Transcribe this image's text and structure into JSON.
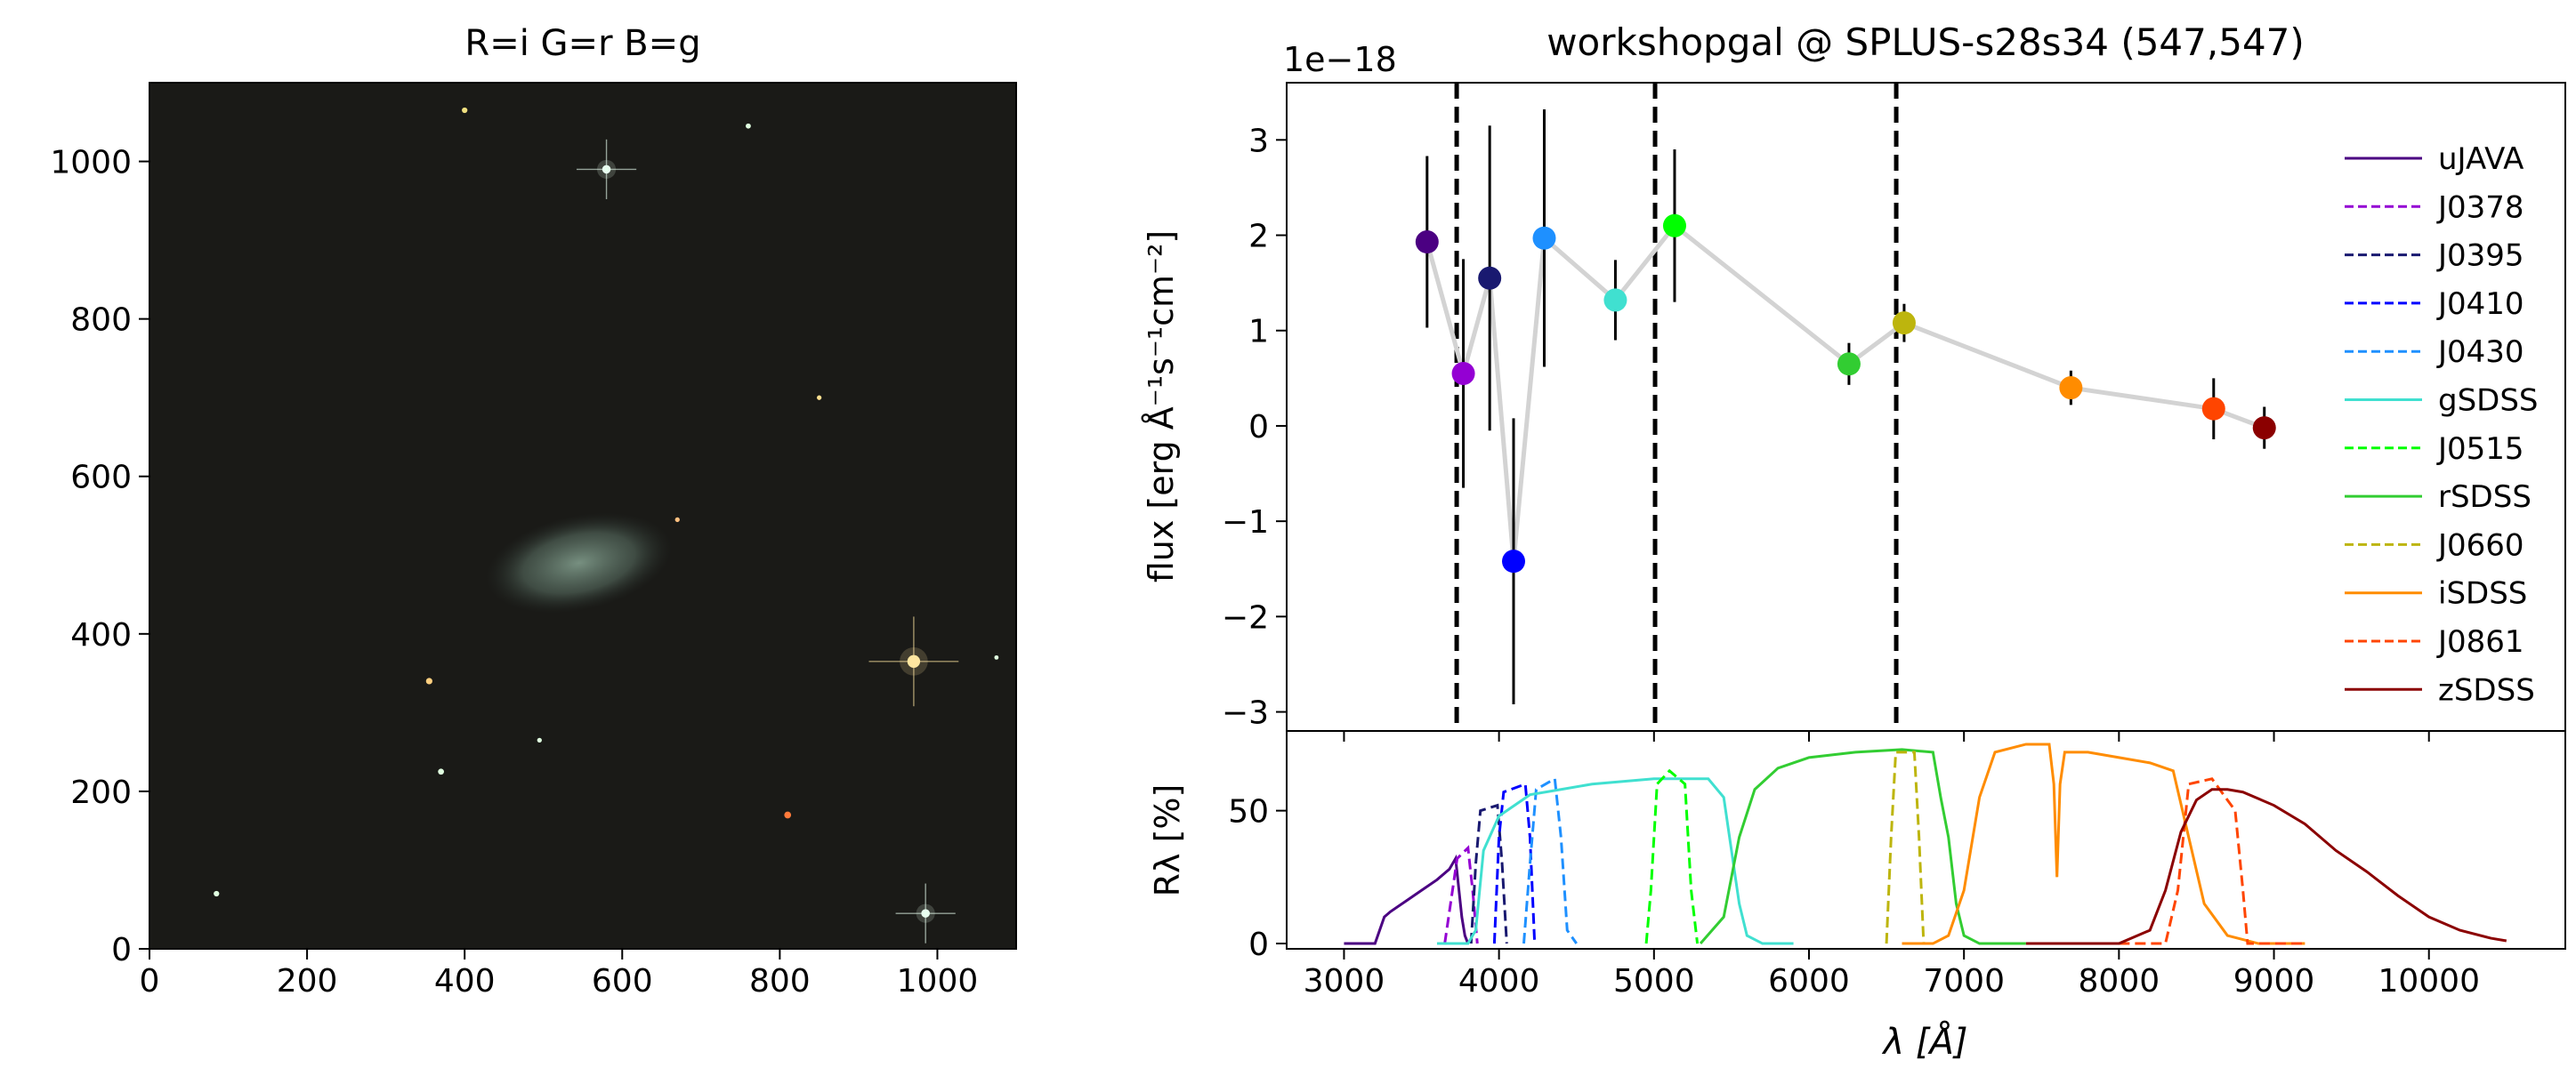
{
  "chart_data": [
    {
      "type": "image",
      "title": "R=i G=r B=g",
      "xlim": [
        0,
        1100
      ],
      "ylim": [
        0,
        1100
      ],
      "x_ticks": [
        0,
        200,
        400,
        600,
        800,
        1000
      ],
      "y_ticks": [
        0,
        200,
        400,
        600,
        800,
        1000
      ],
      "x_tick_labels": [
        "0",
        "200",
        "400",
        "600",
        "800",
        "1000"
      ],
      "y_tick_labels": [
        "0",
        "200",
        "400",
        "600",
        "800",
        "1000"
      ],
      "background_color": "#1a1a17",
      "galaxy": {
        "center": [
          545,
          490
        ],
        "semi_axes": [
          120,
          60
        ],
        "color": "#6f8a7a"
      },
      "bright_stars": [
        {
          "x": 970,
          "y": 365,
          "size": 3,
          "color": "#ffe6a0"
        },
        {
          "x": 580,
          "y": 990,
          "size": 2,
          "color": "#e8fff0"
        },
        {
          "x": 985,
          "y": 45,
          "size": 2,
          "color": "#e8fff0"
        },
        {
          "x": 810,
          "y": 170,
          "size": 1.6,
          "color": "#ff7a3a"
        },
        {
          "x": 355,
          "y": 340,
          "size": 1.5,
          "color": "#ffd080"
        },
        {
          "x": 370,
          "y": 225,
          "size": 1.4,
          "color": "#e0ffe0"
        },
        {
          "x": 85,
          "y": 70,
          "size": 1.3,
          "color": "#e0ffe0"
        },
        {
          "x": 400,
          "y": 1065,
          "size": 1.3,
          "color": "#f0e080"
        },
        {
          "x": 760,
          "y": 1045,
          "size": 1.2,
          "color": "#e0ffe0"
        },
        {
          "x": 850,
          "y": 700,
          "size": 1.1,
          "color": "#ffe090"
        },
        {
          "x": 670,
          "y": 545,
          "size": 1.1,
          "color": "#ffc080"
        },
        {
          "x": 495,
          "y": 265,
          "size": 1.1,
          "color": "#e0ffe0"
        },
        {
          "x": 1075,
          "y": 370,
          "size": 1.0,
          "color": "#e0ffe0"
        }
      ]
    },
    {
      "type": "scatter",
      "title": "workshopgal @ SPLUS-s28s34 (547,547)",
      "ylabel": "flux [erg Å⁻¹s⁻¹cm⁻²]",
      "offset_text": "1e−18",
      "y_scale_factor": 1e-18,
      "xlim": [
        2630,
        10880
      ],
      "ylim": [
        -3.2,
        3.6
      ],
      "y_ticks": [
        3,
        2,
        1,
        0,
        -1,
        -2,
        -3
      ],
      "y_tick_labels": [
        "3",
        "2",
        "1",
        "0",
        "−1",
        "−2",
        "−3"
      ],
      "vertical_lines": [
        3727,
        5007,
        6563
      ],
      "connecting_line_color": "#d3d3d3",
      "points": [
        {
          "filter": "uJAVA",
          "x": 3536,
          "y": 1.93,
          "err": 0.9,
          "color": "#4b0082"
        },
        {
          "filter": "J0378",
          "x": 3770,
          "y": 0.55,
          "err": 1.2,
          "color": "#9400d3"
        },
        {
          "filter": "J0395",
          "x": 3940,
          "y": 1.55,
          "err": 1.6,
          "color": "#191970"
        },
        {
          "filter": "J0410",
          "x": 4094,
          "y": -1.42,
          "err": 1.5,
          "color": "#0000ff"
        },
        {
          "filter": "J0430",
          "x": 4292,
          "y": 1.97,
          "err": 1.35,
          "color": "#1e90ff"
        },
        {
          "filter": "gSDSS",
          "x": 4751,
          "y": 1.32,
          "err": 0.42,
          "color": "#40e0d0"
        },
        {
          "filter": "J0515",
          "x": 5133,
          "y": 2.1,
          "err": 0.8,
          "color": "#00ff00"
        },
        {
          "filter": "rSDSS",
          "x": 6258,
          "y": 0.65,
          "err": 0.22,
          "color": "#32cd32"
        },
        {
          "filter": "J0660",
          "x": 6614,
          "y": 1.08,
          "err": 0.2,
          "color": "#bdb50d"
        },
        {
          "filter": "iSDSS",
          "x": 7690,
          "y": 0.4,
          "err": 0.18,
          "color": "#ff8c00"
        },
        {
          "filter": "J0861",
          "x": 8611,
          "y": 0.18,
          "err": 0.32,
          "color": "#ff4500"
        },
        {
          "filter": "zSDSS",
          "x": 8938,
          "y": -0.02,
          "err": 0.22,
          "color": "#8b0000"
        }
      ],
      "legend": [
        {
          "label": "uJAVA",
          "color": "#4b0082",
          "dashed": false
        },
        {
          "label": "J0378",
          "color": "#9400d3",
          "dashed": true
        },
        {
          "label": "J0395",
          "color": "#191970",
          "dashed": true
        },
        {
          "label": "J0410",
          "color": "#0000ff",
          "dashed": true
        },
        {
          "label": "J0430",
          "color": "#1e90ff",
          "dashed": true
        },
        {
          "label": "gSDSS",
          "color": "#40e0d0",
          "dashed": false
        },
        {
          "label": "J0515",
          "color": "#00ff00",
          "dashed": true
        },
        {
          "label": "rSDSS",
          "color": "#32cd32",
          "dashed": false
        },
        {
          "label": "J0660",
          "color": "#bdb50d",
          "dashed": true
        },
        {
          "label": "iSDSS",
          "color": "#ff8c00",
          "dashed": false
        },
        {
          "label": "J0861",
          "color": "#ff4500",
          "dashed": true
        },
        {
          "label": "zSDSS",
          "color": "#8b0000",
          "dashed": false
        }
      ],
      "legend_placement": "right"
    },
    {
      "type": "line",
      "xlabel": "λ [Å]",
      "ylabel": "Rλ [%]",
      "xlim": [
        2630,
        10880
      ],
      "ylim": [
        -2,
        80
      ],
      "x_ticks": [
        3000,
        4000,
        5000,
        6000,
        7000,
        8000,
        9000,
        10000
      ],
      "x_tick_labels": [
        "3000",
        "4000",
        "5000",
        "6000",
        "7000",
        "8000",
        "9000",
        "10000"
      ],
      "y_ticks": [
        0,
        50
      ],
      "y_tick_labels": [
        "0",
        "50"
      ],
      "series": [
        {
          "name": "uJAVA",
          "color": "#4b0082",
          "dashed": false,
          "x": [
            3000,
            3200,
            3260,
            3300,
            3400,
            3500,
            3600,
            3680,
            3720,
            3760,
            3780,
            3800
          ],
          "y": [
            0,
            0,
            10,
            12,
            16,
            20,
            24,
            28,
            32,
            10,
            3,
            0
          ]
        },
        {
          "name": "J0378",
          "color": "#9400d3",
          "dashed": true,
          "x": [
            3650,
            3700,
            3730,
            3800,
            3830,
            3860
          ],
          "y": [
            0,
            20,
            32,
            36,
            20,
            0
          ]
        },
        {
          "name": "J0395",
          "color": "#191970",
          "dashed": true,
          "x": [
            3820,
            3850,
            3880,
            3990,
            4020,
            4050
          ],
          "y": [
            0,
            30,
            50,
            52,
            30,
            0
          ]
        },
        {
          "name": "J0410",
          "color": "#0000ff",
          "dashed": true,
          "x": [
            3970,
            4000,
            4030,
            4170,
            4200,
            4230
          ],
          "y": [
            0,
            40,
            57,
            60,
            40,
            0
          ]
        },
        {
          "name": "J0430",
          "color": "#1e90ff",
          "dashed": true,
          "x": [
            4160,
            4200,
            4240,
            4360,
            4400,
            4440,
            4500
          ],
          "y": [
            0,
            30,
            58,
            62,
            40,
            5,
            0
          ]
        },
        {
          "name": "gSDSS",
          "color": "#40e0d0",
          "dashed": false,
          "x": [
            3600,
            3800,
            3850,
            3900,
            4000,
            4200,
            4400,
            4600,
            4800,
            5000,
            5200,
            5350,
            5450,
            5500,
            5550,
            5600,
            5700,
            5900
          ],
          "y": [
            0,
            0,
            5,
            35,
            48,
            56,
            58,
            60,
            61,
            62,
            62,
            62,
            55,
            35,
            15,
            3,
            0,
            0
          ]
        },
        {
          "name": "J0515",
          "color": "#00ff00",
          "dashed": true,
          "x": [
            4950,
            4980,
            5020,
            5100,
            5200,
            5240,
            5280
          ],
          "y": [
            0,
            20,
            60,
            65,
            60,
            20,
            0
          ]
        },
        {
          "name": "rSDSS",
          "color": "#32cd32",
          "dashed": false,
          "x": [
            5300,
            5450,
            5550,
            5650,
            5800,
            6000,
            6300,
            6600,
            6800,
            6850,
            6900,
            6950,
            7000,
            7100,
            7200,
            7400
          ],
          "y": [
            0,
            10,
            40,
            58,
            66,
            70,
            72,
            73,
            72,
            55,
            40,
            15,
            3,
            0,
            0,
            0
          ]
        },
        {
          "name": "J0660",
          "color": "#bdb50d",
          "dashed": true,
          "x": [
            6500,
            6530,
            6560,
            6680,
            6710,
            6740
          ],
          "y": [
            0,
            40,
            72,
            72,
            40,
            0
          ]
        },
        {
          "name": "iSDSS",
          "color": "#ff8c00",
          "dashed": false,
          "x": [
            6600,
            6800,
            6900,
            7000,
            7100,
            7200,
            7400,
            7550,
            7580,
            7600,
            7620,
            7650,
            7800,
            8000,
            8200,
            8350,
            8450,
            8550,
            8700,
            8900,
            9000,
            9200
          ],
          "y": [
            0,
            0,
            3,
            20,
            55,
            72,
            75,
            75,
            60,
            25,
            60,
            72,
            72,
            70,
            68,
            65,
            40,
            15,
            3,
            0,
            0,
            0
          ]
        },
        {
          "name": "J0861",
          "color": "#ff4500",
          "dashed": true,
          "x": [
            8000,
            8300,
            8380,
            8450,
            8600,
            8750,
            8800,
            8830,
            8900,
            9200
          ],
          "y": [
            0,
            0,
            20,
            60,
            62,
            50,
            20,
            0,
            0,
            0
          ]
        },
        {
          "name": "zSDSS",
          "color": "#8b0000",
          "dashed": false,
          "x": [
            7400,
            8000,
            8200,
            8300,
            8400,
            8500,
            8600,
            8700,
            8800,
            9000,
            9200,
            9400,
            9600,
            9800,
            10000,
            10200,
            10400,
            10500
          ],
          "y": [
            0,
            0,
            5,
            20,
            42,
            54,
            58,
            58,
            57,
            52,
            45,
            35,
            27,
            18,
            10,
            5,
            2,
            1
          ]
        }
      ]
    }
  ]
}
